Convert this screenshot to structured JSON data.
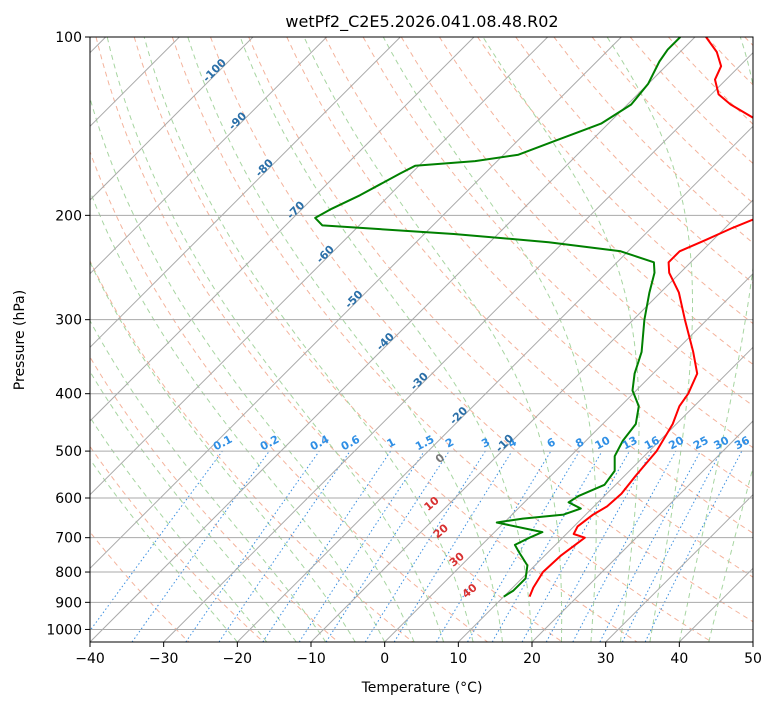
{
  "chart_data": {
    "type": "skew-t",
    "title": "wetPf2_C2E5.2026.041.08.48.R02",
    "xlabel": "Temperature (°C)",
    "ylabel": "Pressure (hPa)",
    "xlim": [
      -40,
      50
    ],
    "ylim": [
      1050,
      100
    ],
    "y_scale": "log",
    "grid": true,
    "x_ticks": [
      "−40",
      "−30",
      "−20",
      "−10",
      "0",
      "10",
      "20",
      "30",
      "40",
      "50"
    ],
    "x_tick_values": [
      -40,
      -30,
      -20,
      -10,
      0,
      10,
      20,
      30,
      40,
      50
    ],
    "y_ticks": [
      "100",
      "200",
      "300",
      "400",
      "500",
      "600",
      "700",
      "800",
      "900",
      "1000"
    ],
    "y_tick_values": [
      100,
      200,
      300,
      400,
      500,
      600,
      700,
      800,
      900,
      1000
    ],
    "isotherms": [
      -100,
      -90,
      -80,
      -70,
      -60,
      -50,
      -40,
      -30,
      -20,
      -10,
      0,
      10,
      20,
      30,
      40
    ],
    "isotherm_labels": [
      {
        "text": "-100",
        "t": -100,
        "p": 115
      },
      {
        "text": "-90",
        "t": -90,
        "p": 140
      },
      {
        "text": "-80",
        "t": -80,
        "p": 168
      },
      {
        "text": "-70",
        "t": -70,
        "p": 198
      },
      {
        "text": "-60",
        "t": -60,
        "p": 235
      },
      {
        "text": "-50",
        "t": -50,
        "p": 280
      },
      {
        "text": "-40",
        "t": -40,
        "p": 330
      },
      {
        "text": "-30",
        "t": -30,
        "p": 385
      },
      {
        "text": "-20",
        "t": -20,
        "p": 440
      },
      {
        "text": "-10",
        "t": -10,
        "p": 490
      }
    ],
    "mixing_ratio_labels": [
      "0.1",
      "0.2",
      "0.4",
      "0.6",
      "1",
      "1.5",
      "2",
      "3",
      "4",
      "6",
      "8",
      "10",
      "13",
      "16",
      "20",
      "25",
      "30",
      "36"
    ],
    "mixing_ratio_values": [
      0.1,
      0.2,
      0.4,
      0.6,
      1,
      1.5,
      2,
      3,
      4,
      6,
      8,
      10,
      13,
      16,
      20,
      25,
      30,
      36
    ],
    "moist_adiabat_labels": [
      "0",
      "10",
      "20",
      "30",
      "40"
    ],
    "moist_adiabat_label_points": [
      {
        "text": "0",
        "t": 24,
        "p": 520
      },
      {
        "text": "10",
        "t": 29,
        "p": 620
      },
      {
        "text": "20",
        "t": 34,
        "p": 690
      },
      {
        "text": "30",
        "t": 40,
        "p": 770
      },
      {
        "text": "40",
        "t": 46,
        "p": 870
      }
    ],
    "series": [
      {
        "color": "#ff0000",
        "points": [
          {
            "p": 880,
            "t": 13.5
          },
          {
            "p": 850,
            "t": 12.8
          },
          {
            "p": 800,
            "t": 12.0
          },
          {
            "p": 750,
            "t": 12.2
          },
          {
            "p": 700,
            "t": 13.0
          },
          {
            "p": 690,
            "t": 11.0
          },
          {
            "p": 670,
            "t": 10.5
          },
          {
            "p": 640,
            "t": 11.0
          },
          {
            "p": 620,
            "t": 11.8
          },
          {
            "p": 590,
            "t": 12.0
          },
          {
            "p": 550,
            "t": 11.5
          },
          {
            "p": 500,
            "t": 11.0
          },
          {
            "p": 450,
            "t": 9.5
          },
          {
            "p": 420,
            "t": 8.0
          },
          {
            "p": 400,
            "t": 7.5
          },
          {
            "p": 370,
            "t": 6.0
          },
          {
            "p": 340,
            "t": 2.5
          },
          {
            "p": 300,
            "t": -3.0
          },
          {
            "p": 270,
            "t": -7.5
          },
          {
            "p": 250,
            "t": -11.5
          },
          {
            "p": 240,
            "t": -13.0
          },
          {
            "p": 230,
            "t": -13.0
          },
          {
            "p": 220,
            "t": -11.0
          },
          {
            "p": 210,
            "t": -9.0
          },
          {
            "p": 200,
            "t": -6.5
          },
          {
            "p": 190,
            "t": -4.5
          },
          {
            "p": 180,
            "t": -5.0
          },
          {
            "p": 170,
            "t": -7.0
          },
          {
            "p": 160,
            "t": -10.0
          },
          {
            "p": 150,
            "t": -14.0
          },
          {
            "p": 140,
            "t": -19.0
          },
          {
            "p": 130,
            "t": -26.0
          },
          {
            "p": 125,
            "t": -29.0
          },
          {
            "p": 118,
            "t": -31.5
          },
          {
            "p": 112,
            "t": -32.5
          },
          {
            "p": 106,
            "t": -35.0
          },
          {
            "p": 100,
            "t": -38.5
          }
        ]
      },
      {
        "color": "#008000",
        "points": [
          {
            "p": 880,
            "t": 10.0
          },
          {
            "p": 860,
            "t": 10.5
          },
          {
            "p": 820,
            "t": 10.5
          },
          {
            "p": 780,
            "t": 9.0
          },
          {
            "p": 740,
            "t": 6.0
          },
          {
            "p": 720,
            "t": 4.5
          },
          {
            "p": 700,
            "t": 5.5
          },
          {
            "p": 685,
            "t": 6.5
          },
          {
            "p": 660,
            "t": -1.0
          },
          {
            "p": 650,
            "t": 2.0
          },
          {
            "p": 640,
            "t": 7.0
          },
          {
            "p": 625,
            "t": 8.5
          },
          {
            "p": 610,
            "t": 6.0
          },
          {
            "p": 595,
            "t": 6.5
          },
          {
            "p": 570,
            "t": 8.5
          },
          {
            "p": 540,
            "t": 8.0
          },
          {
            "p": 510,
            "t": 6.0
          },
          {
            "p": 480,
            "t": 5.0
          },
          {
            "p": 450,
            "t": 4.5
          },
          {
            "p": 420,
            "t": 2.5
          },
          {
            "p": 395,
            "t": -0.5
          },
          {
            "p": 370,
            "t": -2.5
          },
          {
            "p": 340,
            "t": -4.5
          },
          {
            "p": 300,
            "t": -8.5
          },
          {
            "p": 270,
            "t": -11.5
          },
          {
            "p": 250,
            "t": -13.5
          },
          {
            "p": 240,
            "t": -15.0
          },
          {
            "p": 230,
            "t": -21.0
          },
          {
            "p": 222,
            "t": -32.0
          },
          {
            "p": 215,
            "t": -46.0
          },
          {
            "p": 208,
            "t": -65.0
          },
          {
            "p": 202,
            "t": -67.0
          },
          {
            "p": 195,
            "t": -66.0
          },
          {
            "p": 185,
            "t": -64.0
          },
          {
            "p": 170,
            "t": -61.5
          },
          {
            "p": 165,
            "t": -60.5
          },
          {
            "p": 162,
            "t": -53.0
          },
          {
            "p": 158,
            "t": -48.0
          },
          {
            "p": 150,
            "t": -45.0
          },
          {
            "p": 140,
            "t": -41.0
          },
          {
            "p": 130,
            "t": -39.5
          },
          {
            "p": 120,
            "t": -40.0
          },
          {
            "p": 110,
            "t": -41.5
          },
          {
            "p": 105,
            "t": -42.0
          },
          {
            "p": 100,
            "t": -42.0
          }
        ]
      }
    ]
  }
}
